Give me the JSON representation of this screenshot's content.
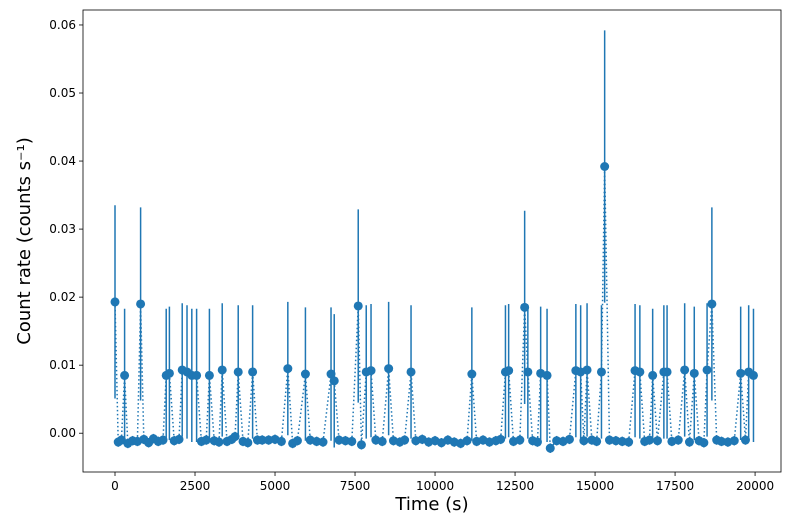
{
  "chart_data": {
    "type": "errorbar",
    "xlabel": "Time (s)",
    "ylabel": "Count rate (counts s⁻¹)",
    "color": "#1f77b4",
    "line_style": "dotted",
    "xlim": [
      -1000,
      20810
    ],
    "ylim": [
      -0.0057,
      0.0622
    ],
    "xticks": [
      0,
      2500,
      5000,
      7500,
      10000,
      12500,
      15000,
      17500,
      20000
    ],
    "yticks": [
      {
        "value": 0,
        "label": "0.00"
      },
      {
        "value": 0.01,
        "label": "0.01"
      },
      {
        "value": 0.02,
        "label": "0.02"
      },
      {
        "value": 0.03,
        "label": "0.03"
      },
      {
        "value": 0.04,
        "label": "0.04"
      },
      {
        "value": 0.05,
        "label": "0.05"
      },
      {
        "value": 0.06,
        "label": "0.06"
      }
    ],
    "x": [
      0,
      100,
      200,
      300,
      400,
      550,
      700,
      800,
      900,
      1050,
      1200,
      1350,
      1500,
      1600,
      1700,
      1850,
      2000,
      2100,
      2250,
      2400,
      2550,
      2700,
      2850,
      2950,
      3100,
      3250,
      3350,
      3500,
      3650,
      3750,
      3850,
      4000,
      4150,
      4300,
      4450,
      4600,
      4800,
      5000,
      5200,
      5400,
      5550,
      5700,
      5950,
      6100,
      6300,
      6500,
      6750,
      6850,
      7000,
      7200,
      7400,
      7600,
      7700,
      7850,
      8000,
      8150,
      8350,
      8550,
      8700,
      8900,
      9050,
      9250,
      9400,
      9600,
      9800,
      10000,
      10200,
      10400,
      10600,
      10800,
      11000,
      11150,
      11300,
      11500,
      11700,
      11900,
      12050,
      12200,
      12300,
      12450,
      12650,
      12800,
      12900,
      13050,
      13200,
      13300,
      13500,
      13600,
      13800,
      14000,
      14200,
      14400,
      14550,
      14650,
      14750,
      14900,
      15050,
      15200,
      15300,
      15450,
      15650,
      15850,
      16050,
      16250,
      16400,
      16550,
      16700,
      16800,
      16950,
      17150,
      17250,
      17400,
      17600,
      17800,
      17950,
      18100,
      18250,
      18400,
      18500,
      18650,
      18800,
      18950,
      19150,
      19350,
      19550,
      19700,
      19800,
      19950
    ],
    "values": [
      0.0193,
      -0.0013,
      -0.001,
      0.0085,
      -0.0015,
      -0.0011,
      -0.0012,
      0.019,
      -0.0009,
      -0.0014,
      -0.0008,
      -0.0012,
      -0.001,
      0.0085,
      0.0088,
      -0.0011,
      -0.0009,
      0.0093,
      0.009,
      0.0085,
      0.0085,
      -0.0012,
      -0.001,
      0.0085,
      -0.0011,
      -0.0013,
      0.0093,
      -0.0012,
      -0.0009,
      -0.0005,
      0.009,
      -0.0012,
      -0.0014,
      0.009,
      -0.001,
      -0.001,
      -0.001,
      -0.0009,
      -0.0012,
      0.0095,
      -0.0015,
      -0.0011,
      0.0087,
      -0.001,
      -0.0012,
      -0.0013,
      0.0087,
      0.0077,
      -0.001,
      -0.0011,
      -0.0012,
      0.0187,
      -0.0017,
      0.009,
      0.0092,
      -0.001,
      -0.0012,
      0.0095,
      -0.0011,
      -0.0013,
      -0.001,
      0.009,
      -0.0011,
      -0.0009,
      -0.0013,
      -0.0011,
      -0.0014,
      -0.001,
      -0.0013,
      -0.0015,
      -0.0011,
      0.0087,
      -0.0012,
      -0.001,
      -0.0013,
      -0.0011,
      -0.0009,
      0.009,
      0.0092,
      -0.0012,
      -0.001,
      0.0185,
      0.009,
      -0.0011,
      -0.0013,
      0.0088,
      0.0085,
      -0.0022,
      -0.0011,
      -0.0012,
      -0.0009,
      0.0092,
      0.009,
      -0.0011,
      0.0093,
      -0.001,
      -0.0012,
      0.009,
      0.0392,
      -0.001,
      -0.0011,
      -0.0012,
      -0.0013,
      0.0092,
      0.009,
      -0.0012,
      -0.001,
      0.0085,
      -0.0011,
      0.009,
      0.009,
      -0.0012,
      -0.001,
      0.0093,
      -0.0013,
      0.0088,
      -0.0011,
      -0.0014,
      0.0093,
      0.019,
      -0.001,
      -0.0012,
      -0.0013,
      -0.0011,
      0.0088,
      -0.001,
      0.009,
      0.0085
    ],
    "errors": [
      0.0142,
      0.0007,
      0.0007,
      0.0098,
      0.0007,
      0.0007,
      0.0007,
      0.0142,
      0.0007,
      0.0007,
      0.0007,
      0.0007,
      0.0007,
      0.0098,
      0.0098,
      0.0007,
      0.0007,
      0.0098,
      0.0098,
      0.0098,
      0.0098,
      0.0007,
      0.0007,
      0.0098,
      0.0007,
      0.0007,
      0.0098,
      0.0007,
      0.0007,
      0.0007,
      0.0098,
      0.0007,
      0.0007,
      0.0098,
      0.0007,
      0.0007,
      0.0007,
      0.0007,
      0.0007,
      0.0098,
      0.0007,
      0.0007,
      0.0098,
      0.0007,
      0.0007,
      0.0007,
      0.0098,
      0.0098,
      0.0007,
      0.0007,
      0.0007,
      0.0142,
      0.0007,
      0.0098,
      0.0098,
      0.0007,
      0.0007,
      0.0098,
      0.0007,
      0.0007,
      0.0007,
      0.0098,
      0.0007,
      0.0007,
      0.0007,
      0.0007,
      0.0007,
      0.0007,
      0.0007,
      0.0007,
      0.0007,
      0.0098,
      0.0007,
      0.0007,
      0.0007,
      0.0007,
      0.0007,
      0.0098,
      0.0098,
      0.0007,
      0.0007,
      0.0142,
      0.0098,
      0.0007,
      0.0007,
      0.0098,
      0.0098,
      0.0007,
      0.0007,
      0.0007,
      0.0007,
      0.0098,
      0.0098,
      0.0007,
      0.0098,
      0.0007,
      0.0007,
      0.0098,
      0.02,
      0.0007,
      0.0007,
      0.0007,
      0.0007,
      0.0098,
      0.0098,
      0.0007,
      0.0007,
      0.0098,
      0.0007,
      0.0098,
      0.0098,
      0.0007,
      0.0007,
      0.0098,
      0.0007,
      0.0098,
      0.0007,
      0.0007,
      0.0098,
      0.0142,
      0.0007,
      0.0007,
      0.0007,
      0.0007,
      0.0098,
      0.0007,
      0.0098,
      0.0098
    ]
  }
}
